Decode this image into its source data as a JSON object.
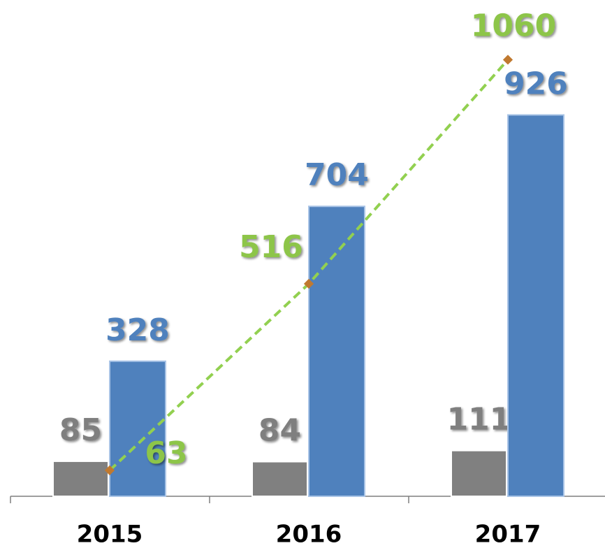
{
  "chart_data": {
    "type": "bar",
    "categories": [
      "2015",
      "2016",
      "2017"
    ],
    "series": [
      {
        "type": "bar",
        "color": "#808080",
        "label_color": "#7f7f7f",
        "values": [
          85,
          84,
          111
        ]
      },
      {
        "type": "bar",
        "color": "#4f81bd",
        "label_color": "#4f81bd",
        "values": [
          328,
          704,
          926
        ]
      },
      {
        "type": "line",
        "color": "#92d050",
        "label_color": "#8dc54a",
        "marker_color": "#c0792f",
        "values": [
          63,
          516,
          1060
        ]
      }
    ],
    "ylim": [
      0,
      1200
    ]
  }
}
